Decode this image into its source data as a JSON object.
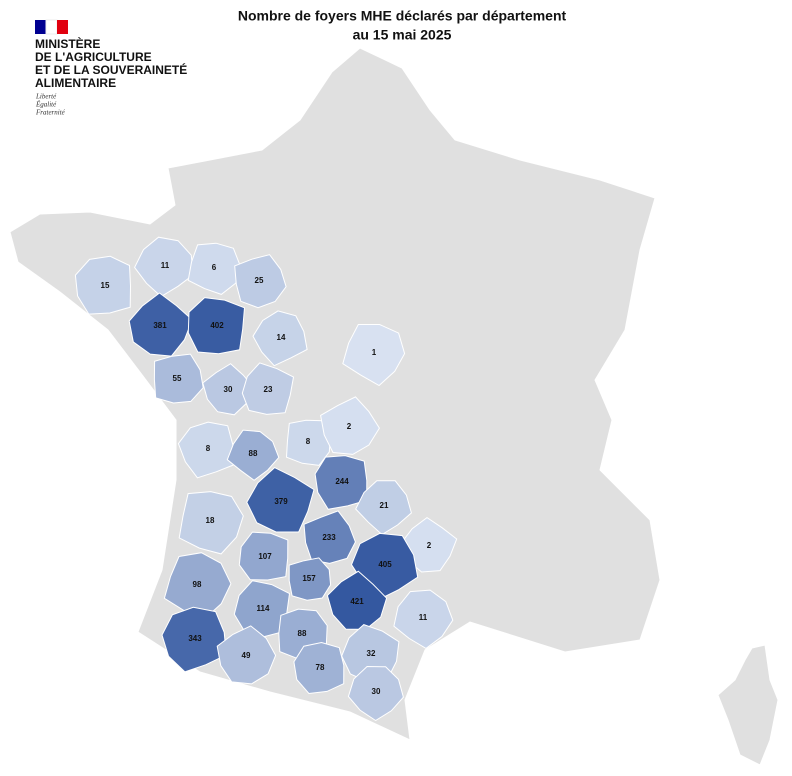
{
  "header": {
    "title_lines": [
      "Nombre de foyers MHE déclarés par département",
      "au 15 mai 2025"
    ]
  },
  "logo": {
    "ministry_lines": [
      "MINISTÈRE",
      "DE L'AGRICULTURE",
      "ET DE LA SOUVERAINETÉ",
      "ALIMENTAIRE"
    ],
    "motto_lines": [
      "Liberté",
      "Égalité",
      "Fraternité"
    ]
  },
  "departments": {
    "values": [
      15,
      11,
      6,
      25,
      381,
      402,
      14,
      1,
      55,
      30,
      23,
      8,
      88,
      8,
      2,
      379,
      244,
      21,
      18,
      233,
      2,
      107,
      405,
      98,
      157,
      421,
      114,
      343,
      11,
      88,
      49,
      32,
      78,
      30
    ]
  }
}
